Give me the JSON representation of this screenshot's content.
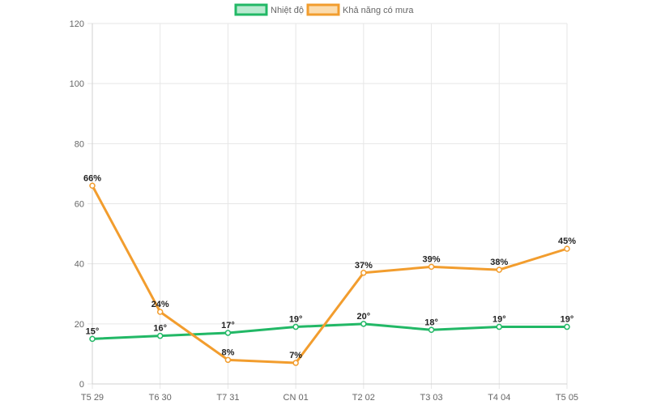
{
  "chart_data": {
    "type": "line",
    "categories": [
      "T5 29",
      "T6 30",
      "T7 31",
      "CN 01",
      "T2 02",
      "T3 03",
      "T4 04",
      "T5 05"
    ],
    "series": [
      {
        "name": "Nhiệt độ",
        "color": "#22b866",
        "fill": "#b9ead0",
        "values": [
          15,
          16,
          17,
          19,
          20,
          18,
          19,
          19
        ],
        "labels": [
          "15°",
          "16°",
          "17°",
          "19°",
          "20°",
          "18°",
          "19°",
          "19°"
        ]
      },
      {
        "name": "Khả năng có mưa",
        "color": "#f29d2e",
        "fill": "#fbdcae",
        "values": [
          66,
          24,
          8,
          7,
          37,
          39,
          38,
          45
        ],
        "labels": [
          "66%",
          "24%",
          "8%",
          "7%",
          "37%",
          "39%",
          "38%",
          "45%"
        ]
      }
    ],
    "ylim": [
      0,
      120
    ],
    "yticks": [
      "0",
      "20",
      "40",
      "60",
      "80",
      "100",
      "120"
    ],
    "grid": true,
    "legend_position": "top"
  }
}
